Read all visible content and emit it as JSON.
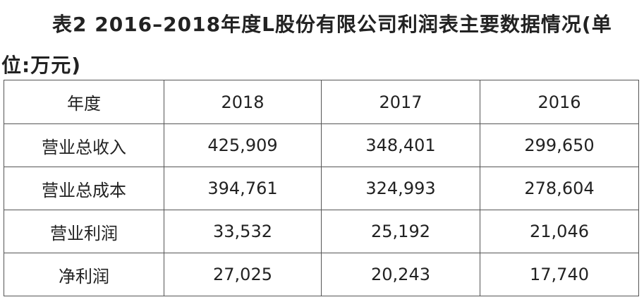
{
  "title": "表2 2016–2018年度L股份有限公司利润表主要数据情况(单位:万元)",
  "table": {
    "header": [
      "年度",
      "2018",
      "2017",
      "2016"
    ],
    "rows": [
      [
        "营业总收入",
        "425,909",
        "348,401",
        "299,650"
      ],
      [
        "营业总成本",
        "394,761",
        "324,993",
        "278,604"
      ],
      [
        "营业利润",
        "33,532",
        "25,192",
        "21,046"
      ],
      [
        "净利润",
        "27,025",
        "20,243",
        "17,740"
      ]
    ]
  }
}
